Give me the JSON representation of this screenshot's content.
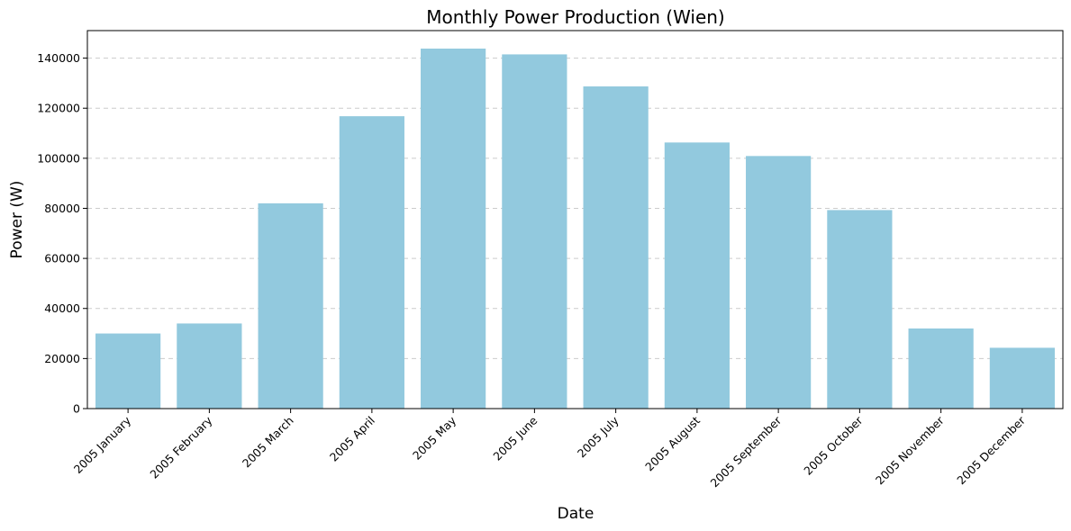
{
  "chart_data": {
    "type": "bar",
    "title": "Monthly Power Production (Wien)",
    "xlabel": "Date",
    "ylabel": "Power (W)",
    "categories": [
      "2005 January",
      "2005 February",
      "2005 March",
      "2005 April",
      "2005 May",
      "2005 June",
      "2005 July",
      "2005 August",
      "2005 September",
      "2005 October",
      "2005 November",
      "2005 December"
    ],
    "values": [
      30000,
      34000,
      82000,
      116800,
      143800,
      141500,
      128700,
      106300,
      100900,
      79300,
      32000,
      24300
    ],
    "ylim": [
      0,
      151000
    ],
    "yticks": [
      0,
      20000,
      40000,
      60000,
      80000,
      100000,
      120000,
      140000
    ],
    "grid": "y-dashed",
    "bar_color": "#92c9de"
  }
}
